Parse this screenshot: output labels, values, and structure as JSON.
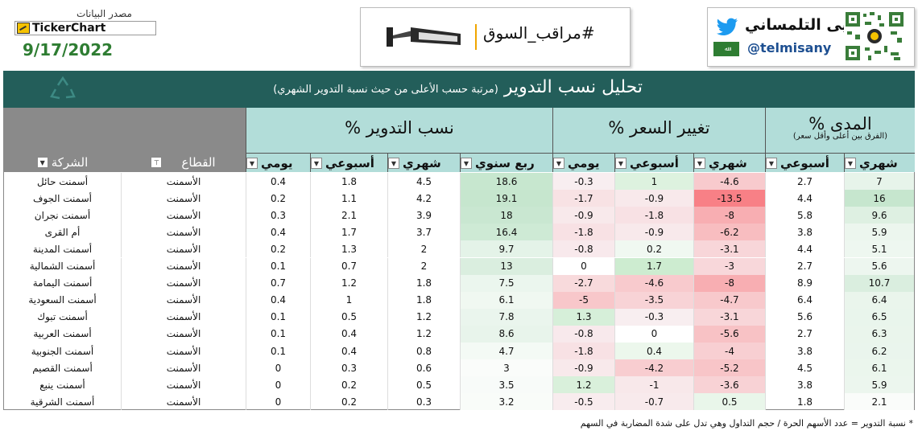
{
  "header": {
    "source_label": "مصدر البيانات",
    "ticker_brand": "TickerChart",
    "date": "9/17/2022",
    "market_hashtag": "#مراقب_السوق",
    "author_name": "يحيى التلمساني",
    "author_handle": "@telmisany"
  },
  "title": {
    "main": "تحليل نسب التدوير",
    "sub": "(مرتبة حسب الأعلى من حيث نسبة التدوير الشهري)"
  },
  "groups": {
    "range": {
      "title": "المدى %",
      "sub": "(الفرق بين أعلى وأقل سعر)"
    },
    "price": {
      "title": "تغيير السعر %"
    },
    "turnover": {
      "title": "نسب التدوير %"
    }
  },
  "columns": {
    "company": "الشركة",
    "sector": "القطاع",
    "daily": "يومي",
    "weekly": "أسبوعي",
    "monthly": "شهري",
    "quarterly": "ربع سنوي"
  },
  "colors": {
    "title_band": "#235e5a",
    "header_teal": "#b2ddd9",
    "header_gray": "#8a8a8a",
    "positive_green": "#c6e7cf",
    "negative_red": "#f08a8f"
  },
  "rows": [
    {
      "company": "أسمنت حائل",
      "sector": "الأسمنت",
      "to_d": "0.4",
      "to_w": "1.8",
      "to_m": "4.5",
      "to_q": "18.6",
      "pc_d": "-0.3",
      "pc_w": "1",
      "pc_m": "-4.6",
      "rg_w": "2.7",
      "rg_m": "7"
    },
    {
      "company": "أسمنت الجوف",
      "sector": "الأسمنت",
      "to_d": "0.2",
      "to_w": "1.1",
      "to_m": "4.2",
      "to_q": "19.1",
      "pc_d": "-1.7",
      "pc_w": "-0.9",
      "pc_m": "-13.5",
      "rg_w": "4.4",
      "rg_m": "16"
    },
    {
      "company": "أسمنت نجران",
      "sector": "الأسمنت",
      "to_d": "0.3",
      "to_w": "2.1",
      "to_m": "3.9",
      "to_q": "18",
      "pc_d": "-0.9",
      "pc_w": "-1.8",
      "pc_m": "-8",
      "rg_w": "5.8",
      "rg_m": "9.6"
    },
    {
      "company": "أم القرى",
      "sector": "الأسمنت",
      "to_d": "0.4",
      "to_w": "1.7",
      "to_m": "3.7",
      "to_q": "16.4",
      "pc_d": "-1.8",
      "pc_w": "-0.9",
      "pc_m": "-6.2",
      "rg_w": "3.8",
      "rg_m": "5.9"
    },
    {
      "company": "أسمنت المدينة",
      "sector": "الأسمنت",
      "to_d": "0.2",
      "to_w": "1.3",
      "to_m": "2",
      "to_q": "9.7",
      "pc_d": "-0.8",
      "pc_w": "0.2",
      "pc_m": "-3.1",
      "rg_w": "4.4",
      "rg_m": "5.1"
    },
    {
      "company": "أسمنت الشمالية",
      "sector": "الأسمنت",
      "to_d": "0.1",
      "to_w": "0.7",
      "to_m": "2",
      "to_q": "13",
      "pc_d": "0",
      "pc_w": "1.7",
      "pc_m": "-3",
      "rg_w": "2.7",
      "rg_m": "5.6"
    },
    {
      "company": "أسمنت اليمامة",
      "sector": "الأسمنت",
      "to_d": "0.7",
      "to_w": "1.2",
      "to_m": "1.8",
      "to_q": "7.5",
      "pc_d": "-2.7",
      "pc_w": "-4.6",
      "pc_m": "-8",
      "rg_w": "8.9",
      "rg_m": "10.7"
    },
    {
      "company": "أسمنت السعودية",
      "sector": "الأسمنت",
      "to_d": "0.4",
      "to_w": "1",
      "to_m": "1.8",
      "to_q": "6.1",
      "pc_d": "-5",
      "pc_w": "-3.5",
      "pc_m": "-4.7",
      "rg_w": "6.4",
      "rg_m": "6.4"
    },
    {
      "company": "أسمنت تبوك",
      "sector": "الأسمنت",
      "to_d": "0.1",
      "to_w": "0.5",
      "to_m": "1.2",
      "to_q": "7.8",
      "pc_d": "1.3",
      "pc_w": "-0.3",
      "pc_m": "-3.1",
      "rg_w": "5.6",
      "rg_m": "6.5"
    },
    {
      "company": "أسمنت العربية",
      "sector": "الأسمنت",
      "to_d": "0.1",
      "to_w": "0.4",
      "to_m": "1.2",
      "to_q": "8.6",
      "pc_d": "-0.8",
      "pc_w": "0",
      "pc_m": "-5.6",
      "rg_w": "2.7",
      "rg_m": "6.3"
    },
    {
      "company": "أسمنت الجنوبية",
      "sector": "الأسمنت",
      "to_d": "0.1",
      "to_w": "0.4",
      "to_m": "0.8",
      "to_q": "4.7",
      "pc_d": "-1.8",
      "pc_w": "0.4",
      "pc_m": "-4",
      "rg_w": "3.8",
      "rg_m": "6.2"
    },
    {
      "company": "أسمنت القصيم",
      "sector": "الأسمنت",
      "to_d": "0",
      "to_w": "0.3",
      "to_m": "0.6",
      "to_q": "3",
      "pc_d": "-0.9",
      "pc_w": "-4.2",
      "pc_m": "-5.2",
      "rg_w": "4.5",
      "rg_m": "6.1"
    },
    {
      "company": "أسمنت ينبع",
      "sector": "الأسمنت",
      "to_d": "0",
      "to_w": "0.2",
      "to_m": "0.5",
      "to_q": "3.5",
      "pc_d": "1.2",
      "pc_w": "-1",
      "pc_m": "-3.6",
      "rg_w": "3.8",
      "rg_m": "5.9"
    },
    {
      "company": "أسمنت الشرقية",
      "sector": "الأسمنت",
      "to_d": "0",
      "to_w": "0.2",
      "to_m": "0.3",
      "to_q": "3.2",
      "pc_d": "-0.5",
      "pc_w": "-0.7",
      "pc_m": "0.5",
      "rg_w": "1.8",
      "rg_m": "2.1"
    }
  ],
  "footnote": "* نسبة التدوير = عدد الأسهم الحرة / حجم التداول وهي تدل على شدة المضاربة في السهم"
}
